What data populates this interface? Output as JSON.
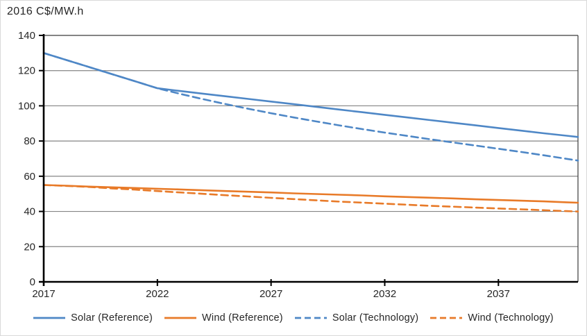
{
  "chart_data": {
    "type": "line",
    "title": "2016 C$/MW.h",
    "xlabel": "",
    "ylabel": "2016 C$/MW.h",
    "x": [
      2017,
      2018,
      2019,
      2020,
      2021,
      2022,
      2023,
      2024,
      2025,
      2026,
      2027,
      2028,
      2029,
      2030,
      2031,
      2032,
      2033,
      2034,
      2035,
      2036,
      2037,
      2038,
      2039,
      2040
    ],
    "series": [
      {
        "name": "Solar (Reference)",
        "color": "#4E87C6",
        "style": "solid",
        "values": [
          130,
          126,
          122,
          118,
          114,
          110,
          108.4,
          106.9,
          105.4,
          103.9,
          102.4,
          100.9,
          99.4,
          97.9,
          96.4,
          94.9,
          93.4,
          91.9,
          90.4,
          88.9,
          87.4,
          85.9,
          84.4,
          83
        ]
      },
      {
        "name": "Wind (Reference)",
        "color": "#E87A28",
        "style": "solid",
        "values": [
          55,
          54.6,
          54.1,
          53.7,
          53.3,
          52.9,
          52.5,
          52,
          51.6,
          51.2,
          50.8,
          50.3,
          49.9,
          49.5,
          49.1,
          48.6,
          48.2,
          47.8,
          47.4,
          46.9,
          46.5,
          46.1,
          45.7,
          45.2
        ]
      },
      {
        "name": "Solar (Technology)",
        "color": "#4E87C6",
        "style": "dashed",
        "values": [
          130,
          126,
          122,
          118,
          114,
          110,
          106.8,
          103.8,
          101,
          98.3,
          95.8,
          93.4,
          91.1,
          88.9,
          86.8,
          84.8,
          82.9,
          81,
          79.2,
          77.4,
          75.6,
          73.8,
          71.9,
          69.9
        ]
      },
      {
        "name": "Wind (Technology)",
        "color": "#E87A28",
        "style": "dashed",
        "values": [
          55,
          54.5,
          53.9,
          53.1,
          52.4,
          51.6,
          50.8,
          50,
          49.2,
          48.5,
          47.7,
          47,
          46.3,
          45.6,
          45,
          44.4,
          43.8,
          43.2,
          42.7,
          42.2,
          41.7,
          41.2,
          40.7,
          40.2
        ]
      }
    ],
    "ylim": [
      0,
      140
    ],
    "ytick_step": 20,
    "yticks": [
      0,
      20,
      40,
      60,
      80,
      100,
      120,
      140
    ],
    "xticks": [
      2017,
      2022,
      2027,
      2032,
      2037
    ],
    "xlim": [
      2017,
      2040.5
    ],
    "grid": true,
    "legend_position": "bottom",
    "colors": {
      "solar": "#4E87C6",
      "wind": "#E87A28",
      "gridline": "#848484",
      "plot_border": "#3a3a3a",
      "axis": "#000000",
      "text": "#262626"
    }
  }
}
